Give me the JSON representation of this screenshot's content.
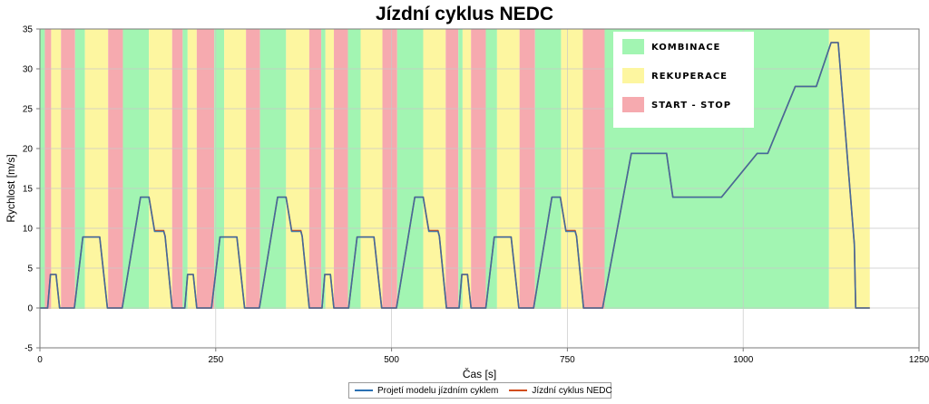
{
  "chart_data": {
    "type": "line",
    "title": "Jízdní cyklus NEDC",
    "xlabel": "Čas [s]",
    "ylabel": "Rychlost [m/s]",
    "xlim": [
      0,
      1250
    ],
    "ylim": [
      -5,
      35
    ],
    "xticks": [
      "0",
      "250",
      "500",
      "750",
      "1000",
      "1250"
    ],
    "yticks": [
      "-5",
      "0",
      "5",
      "10",
      "15",
      "20",
      "25",
      "30",
      "35"
    ],
    "grid": true,
    "zone_legend": {
      "placement": "top-right",
      "entries": [
        {
          "label": "KOMBINACE",
          "color": "#a2f5b2"
        },
        {
          "label": "REKUPERACE",
          "color": "#fdf6a0"
        },
        {
          "label": "START - STOP",
          "color": "#f6aaaf"
        }
      ]
    },
    "zones": [
      {
        "x0": 0,
        "x1": 7,
        "mode": "KOMBINACE"
      },
      {
        "x0": 7,
        "x1": 16,
        "mode": "START - STOP"
      },
      {
        "x0": 16,
        "x1": 30,
        "mode": "REKUPERACE"
      },
      {
        "x0": 30,
        "x1": 50,
        "mode": "START - STOP"
      },
      {
        "x0": 50,
        "x1": 64,
        "mode": "KOMBINACE"
      },
      {
        "x0": 64,
        "x1": 97,
        "mode": "REKUPERACE"
      },
      {
        "x0": 97,
        "x1": 118,
        "mode": "START - STOP"
      },
      {
        "x0": 118,
        "x1": 155,
        "mode": "KOMBINACE"
      },
      {
        "x0": 155,
        "x1": 188,
        "mode": "REKUPERACE"
      },
      {
        "x0": 188,
        "x1": 203,
        "mode": "START - STOP"
      },
      {
        "x0": 203,
        "x1": 210,
        "mode": "KOMBINACE"
      },
      {
        "x0": 210,
        "x1": 223,
        "mode": "REKUPERACE"
      },
      {
        "x0": 223,
        "x1": 248,
        "mode": "START - STOP"
      },
      {
        "x0": 248,
        "x1": 262,
        "mode": "KOMBINACE"
      },
      {
        "x0": 262,
        "x1": 293,
        "mode": "REKUPERACE"
      },
      {
        "x0": 293,
        "x1": 313,
        "mode": "START - STOP"
      },
      {
        "x0": 313,
        "x1": 350,
        "mode": "KOMBINACE"
      },
      {
        "x0": 350,
        "x1": 383,
        "mode": "REKUPERACE"
      },
      {
        "x0": 383,
        "x1": 400,
        "mode": "START - STOP"
      },
      {
        "x0": 400,
        "x1": 406,
        "mode": "KOMBINACE"
      },
      {
        "x0": 406,
        "x1": 418,
        "mode": "REKUPERACE"
      },
      {
        "x0": 418,
        "x1": 438,
        "mode": "START - STOP"
      },
      {
        "x0": 438,
        "x1": 456,
        "mode": "KOMBINACE"
      },
      {
        "x0": 456,
        "x1": 487,
        "mode": "REKUPERACE"
      },
      {
        "x0": 487,
        "x1": 508,
        "mode": "START - STOP"
      },
      {
        "x0": 508,
        "x1": 545,
        "mode": "KOMBINACE"
      },
      {
        "x0": 545,
        "x1": 577,
        "mode": "REKUPERACE"
      },
      {
        "x0": 577,
        "x1": 595,
        "mode": "START - STOP"
      },
      {
        "x0": 595,
        "x1": 601,
        "mode": "KOMBINACE"
      },
      {
        "x0": 601,
        "x1": 613,
        "mode": "REKUPERACE"
      },
      {
        "x0": 613,
        "x1": 634,
        "mode": "START - STOP"
      },
      {
        "x0": 634,
        "x1": 650,
        "mode": "KOMBINACE"
      },
      {
        "x0": 650,
        "x1": 682,
        "mode": "REKUPERACE"
      },
      {
        "x0": 682,
        "x1": 704,
        "mode": "START - STOP"
      },
      {
        "x0": 704,
        "x1": 741,
        "mode": "KOMBINACE"
      },
      {
        "x0": 741,
        "x1": 772,
        "mode": "REKUPERACE"
      },
      {
        "x0": 772,
        "x1": 803,
        "mode": "START - STOP"
      },
      {
        "x0": 803,
        "x1": 1122,
        "mode": "KOMBINACE"
      },
      {
        "x0": 1122,
        "x1": 1180,
        "mode": "REKUPERACE"
      }
    ],
    "series": [
      {
        "name": "Projetí modelu jízdním cyklem",
        "color": "#2a70b3",
        "x": [
          0,
          11,
          15,
          23,
          28,
          49,
          61,
          85,
          96,
          117,
          143,
          155,
          163,
          176,
          178,
          188,
          195,
          206,
          210,
          218,
          223,
          244,
          256,
          280,
          291,
          312,
          338,
          350,
          358,
          371,
          373,
          383,
          390,
          401,
          405,
          413,
          418,
          439,
          451,
          475,
          486,
          507,
          533,
          545,
          553,
          566,
          568,
          578,
          585,
          596,
          600,
          608,
          613,
          634,
          646,
          670,
          681,
          702,
          728,
          740,
          748,
          761,
          763,
          773,
          780,
          800,
          841,
          891,
          900,
          902,
          969,
          1020,
          1035,
          1074,
          1104,
          1125,
          1135,
          1158,
          1160,
          1180
        ],
        "y": [
          0,
          0,
          4.2,
          4.2,
          0,
          0,
          8.9,
          8.9,
          0,
          0,
          13.9,
          13.9,
          9.6,
          9.6,
          9.0,
          0,
          0,
          0,
          4.2,
          4.2,
          0,
          0,
          8.9,
          8.9,
          0,
          0,
          13.9,
          13.9,
          9.6,
          9.6,
          9.0,
          0,
          0,
          0,
          4.2,
          4.2,
          0,
          0,
          8.9,
          8.9,
          0,
          0,
          13.9,
          13.9,
          9.6,
          9.6,
          9.0,
          0,
          0,
          0,
          4.2,
          4.2,
          0,
          0,
          8.9,
          8.9,
          0,
          0,
          13.9,
          13.9,
          9.6,
          9.6,
          9.0,
          0,
          0,
          0,
          19.4,
          19.4,
          13.9,
          13.9,
          13.9,
          19.4,
          19.4,
          27.8,
          27.8,
          33.3,
          33.3,
          8.0,
          0,
          0
        ]
      },
      {
        "name": "Jízdní cyklus NEDC",
        "color": "#d24d1c",
        "x": [
          0,
          11,
          15,
          23,
          28,
          49,
          61,
          85,
          96,
          117,
          143,
          155,
          163,
          176,
          178,
          188,
          195,
          206,
          210,
          218,
          223,
          244,
          256,
          280,
          291,
          312,
          338,
          350,
          358,
          371,
          373,
          383,
          390,
          401,
          405,
          413,
          418,
          439,
          451,
          475,
          486,
          507,
          533,
          545,
          553,
          566,
          568,
          578,
          585,
          596,
          600,
          608,
          613,
          634,
          646,
          670,
          681,
          702,
          728,
          740,
          748,
          761,
          763,
          773,
          780,
          800,
          841,
          891,
          900,
          969,
          1020,
          1035,
          1074,
          1104,
          1125,
          1135,
          1158,
          1160,
          1180
        ],
        "y": [
          0,
          0,
          4.2,
          4.2,
          0,
          0,
          8.9,
          8.9,
          0,
          0,
          13.9,
          13.9,
          9.7,
          9.7,
          9.0,
          0,
          0,
          0,
          4.2,
          4.2,
          0,
          0,
          8.9,
          8.9,
          0,
          0,
          13.9,
          13.9,
          9.7,
          9.7,
          9.0,
          0,
          0,
          0,
          4.2,
          4.2,
          0,
          0,
          8.9,
          8.9,
          0,
          0,
          13.9,
          13.9,
          9.7,
          9.7,
          9.0,
          0,
          0,
          0,
          4.2,
          4.2,
          0,
          0,
          8.9,
          8.9,
          0,
          0,
          13.9,
          13.9,
          9.7,
          9.7,
          9.0,
          0,
          0,
          0,
          19.4,
          19.4,
          13.9,
          13.9,
          19.4,
          19.4,
          27.8,
          27.8,
          33.3,
          33.3,
          8.0,
          0,
          0
        ]
      }
    ]
  }
}
